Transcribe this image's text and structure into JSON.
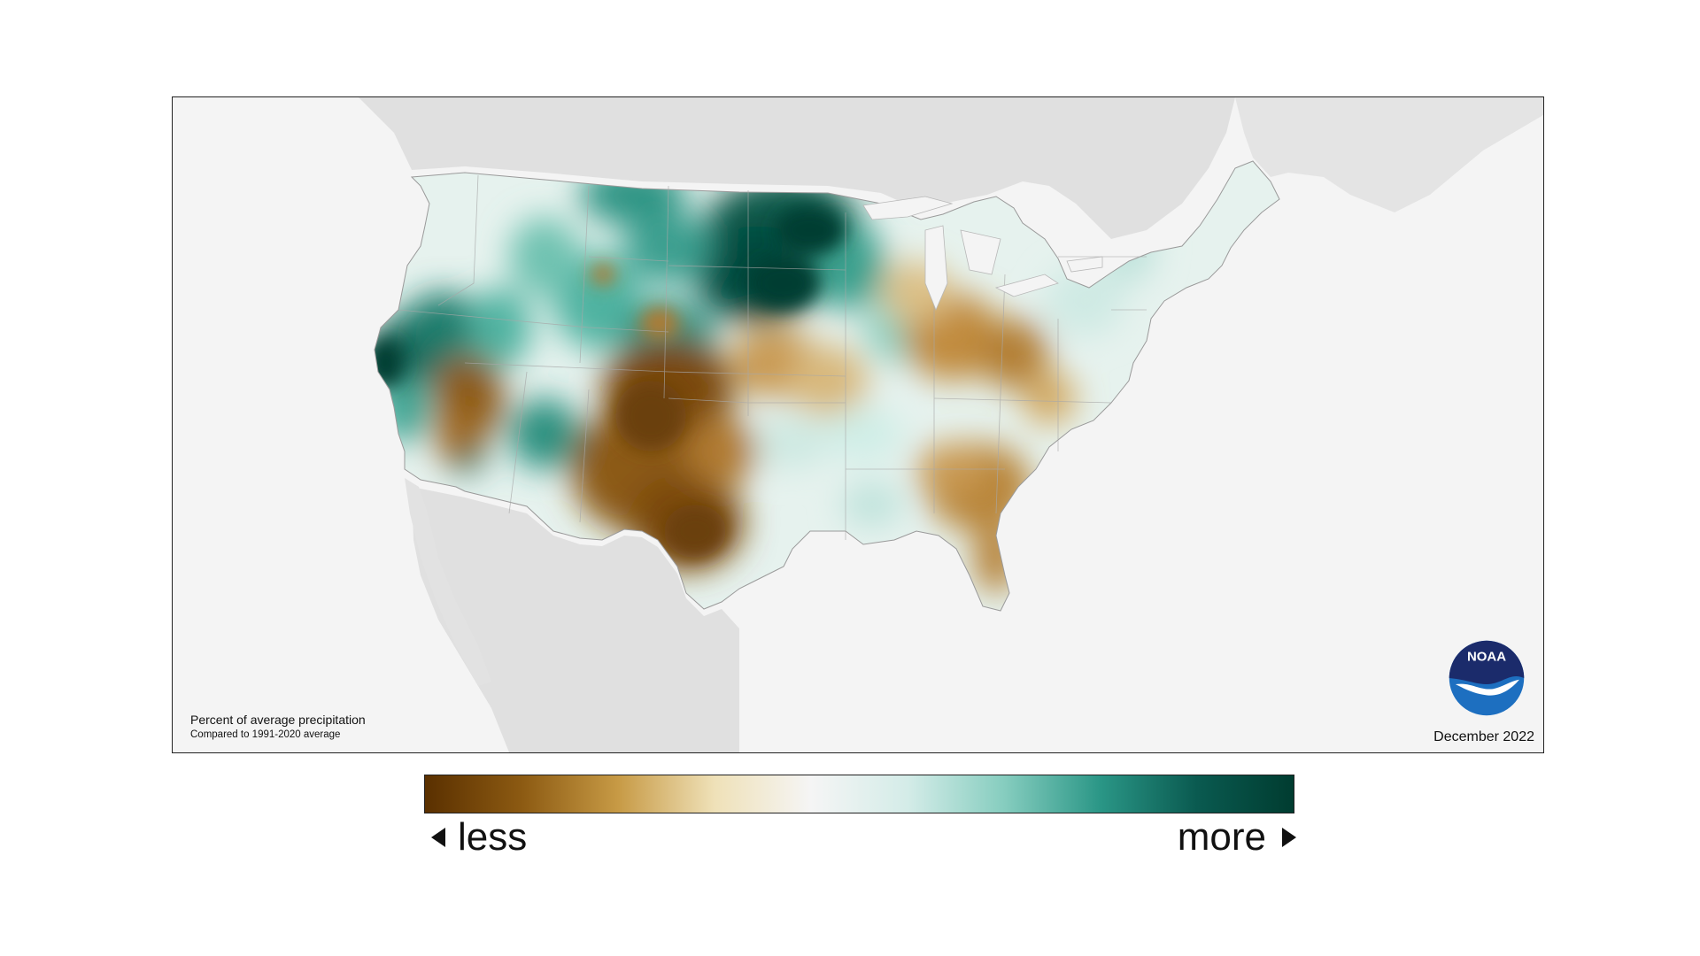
{
  "map": {
    "caption_title": "Percent of average precipitation",
    "caption_subtitle": "Compared to 1991-2020 average",
    "date": "December 2022",
    "logo_text": "NOAA"
  },
  "legend": {
    "less_label": "less",
    "more_label": "more",
    "colors": [
      "#5a3000",
      "#8c5a12",
      "#c79a45",
      "#efe1b8",
      "#f5f5f5",
      "#d4ece8",
      "#86cdbf",
      "#2a9686",
      "#0a5a50",
      "#003c30"
    ]
  },
  "colors": {
    "land_outside": "#e0e0e0",
    "water": "#f4f4f4",
    "conus_base": "#eaf3ef",
    "dry_dark": "#7a4a10",
    "dry_mid": "#c08a3c",
    "dry_light": "#e8d1a0",
    "wet_light": "#bfe3dc",
    "wet_mid": "#4fb3a1",
    "wet_dark": "#0b5a4e",
    "noaa_blue": "#1d6fc0",
    "noaa_navy": "#1b2b6b"
  }
}
